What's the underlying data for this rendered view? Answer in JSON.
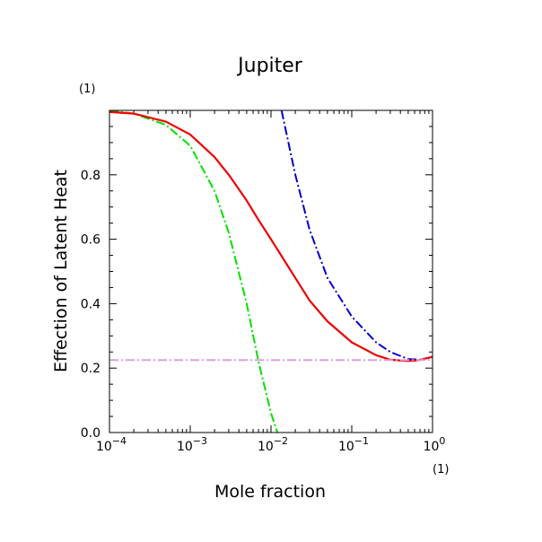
{
  "chart_data": {
    "type": "line",
    "title": "Jupiter",
    "xlabel": "Mole fraction",
    "ylabel": "Effection of Latent Heat",
    "x_unit": "(1)",
    "y_unit": "(1)",
    "xscale": "log",
    "xlim": [
      0.0001,
      1
    ],
    "ylim": [
      0,
      1
    ],
    "grid": false,
    "x_ticks": [
      {
        "value": 0.0001,
        "base": "10",
        "exp": "−4"
      },
      {
        "value": 0.001,
        "base": "10",
        "exp": "−3"
      },
      {
        "value": 0.01,
        "base": "10",
        "exp": "−2"
      },
      {
        "value": 0.1,
        "base": "10",
        "exp": "−1"
      },
      {
        "value": 1,
        "base": "10",
        "exp": "0"
      }
    ],
    "y_ticks": [
      {
        "value": 0.0,
        "label": "0.0"
      },
      {
        "value": 0.2,
        "label": "0.2"
      },
      {
        "value": 0.4,
        "label": "0.4"
      },
      {
        "value": 0.6,
        "label": "0.6"
      },
      {
        "value": 0.8,
        "label": "0.8"
      }
    ],
    "series": [
      {
        "color": "#00e000",
        "style": "dash-dot",
        "x": [
          0.0001,
          0.0002,
          0.0005,
          0.001,
          0.002,
          0.003,
          0.005,
          0.007,
          0.01,
          0.012
        ],
        "y": [
          1.0,
          0.99,
          0.955,
          0.89,
          0.75,
          0.62,
          0.4,
          0.22,
          0.06,
          0.0
        ]
      },
      {
        "color": "#0000cc",
        "style": "dash-dot",
        "x": [
          0.0135,
          0.02,
          0.03,
          0.05,
          0.1,
          0.2,
          0.3,
          0.5,
          0.7,
          1.0
        ],
        "y": [
          1.0,
          0.8,
          0.63,
          0.48,
          0.36,
          0.28,
          0.25,
          0.228,
          0.226,
          0.235
        ]
      },
      {
        "color": "#ee0000",
        "style": "solid",
        "x": [
          0.0001,
          0.0002,
          0.0005,
          0.001,
          0.002,
          0.003,
          0.005,
          0.007,
          0.01,
          0.02,
          0.03,
          0.05,
          0.1,
          0.2,
          0.3,
          0.5,
          0.7,
          1.0
        ],
        "y": [
          0.995,
          0.99,
          0.965,
          0.925,
          0.855,
          0.8,
          0.72,
          0.66,
          0.6,
          0.48,
          0.41,
          0.345,
          0.28,
          0.24,
          0.226,
          0.222,
          0.225,
          0.235
        ]
      },
      {
        "color": "#dda0dd",
        "style": "dash-dot",
        "x": [
          0.0001,
          1.0
        ],
        "y": [
          0.225,
          0.225
        ]
      }
    ]
  }
}
